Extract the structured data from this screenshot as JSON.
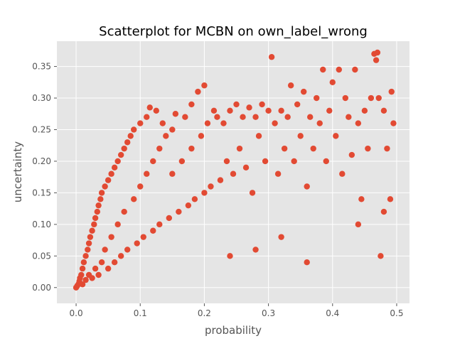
{
  "chart_data": {
    "type": "scatter",
    "title": "Scatterplot for MCBN on own_label_wrong",
    "xlabel": "probability",
    "ylabel": "uncertainty",
    "xlim": [
      -0.03,
      0.52
    ],
    "ylim": [
      -0.025,
      0.39
    ],
    "xticks": [
      0.0,
      0.1,
      0.2,
      0.3,
      0.4,
      0.5
    ],
    "xtick_labels": [
      "0.0",
      "0.1",
      "0.2",
      "0.3",
      "0.4",
      "0.5"
    ],
    "yticks": [
      0.0,
      0.05,
      0.1,
      0.15,
      0.2,
      0.25,
      0.3,
      0.35
    ],
    "ytick_labels": [
      "0.00",
      "0.05",
      "0.10",
      "0.15",
      "0.20",
      "0.25",
      "0.30",
      "0.35"
    ],
    "grid": true,
    "legend": "none",
    "colors": {
      "marker": "#E24A33",
      "plot_background": "#E5E5E5",
      "grid": "#FFFFFF"
    },
    "series": [
      {
        "points": [
          [
            0.0,
            0.0
          ],
          [
            0.002,
            0.003
          ],
          [
            0.004,
            0.006
          ],
          [
            0.005,
            0.01
          ],
          [
            0.006,
            0.015
          ],
          [
            0.008,
            0.02
          ],
          [
            0.01,
            0.03
          ],
          [
            0.01,
            0.005
          ],
          [
            0.012,
            0.04
          ],
          [
            0.015,
            0.05
          ],
          [
            0.015,
            0.012
          ],
          [
            0.018,
            0.06
          ],
          [
            0.02,
            0.07
          ],
          [
            0.02,
            0.02
          ],
          [
            0.022,
            0.08
          ],
          [
            0.025,
            0.09
          ],
          [
            0.025,
            0.015
          ],
          [
            0.028,
            0.1
          ],
          [
            0.03,
            0.11
          ],
          [
            0.03,
            0.03
          ],
          [
            0.033,
            0.12
          ],
          [
            0.035,
            0.13
          ],
          [
            0.035,
            0.02
          ],
          [
            0.038,
            0.14
          ],
          [
            0.04,
            0.15
          ],
          [
            0.04,
            0.04
          ],
          [
            0.045,
            0.16
          ],
          [
            0.045,
            0.06
          ],
          [
            0.05,
            0.17
          ],
          [
            0.05,
            0.03
          ],
          [
            0.055,
            0.18
          ],
          [
            0.055,
            0.08
          ],
          [
            0.06,
            0.19
          ],
          [
            0.06,
            0.04
          ],
          [
            0.065,
            0.2
          ],
          [
            0.065,
            0.1
          ],
          [
            0.07,
            0.21
          ],
          [
            0.07,
            0.05
          ],
          [
            0.075,
            0.22
          ],
          [
            0.075,
            0.12
          ],
          [
            0.08,
            0.23
          ],
          [
            0.08,
            0.06
          ],
          [
            0.085,
            0.24
          ],
          [
            0.09,
            0.25
          ],
          [
            0.09,
            0.14
          ],
          [
            0.095,
            0.07
          ],
          [
            0.1,
            0.26
          ],
          [
            0.1,
            0.16
          ],
          [
            0.105,
            0.08
          ],
          [
            0.11,
            0.27
          ],
          [
            0.11,
            0.18
          ],
          [
            0.115,
            0.285
          ],
          [
            0.12,
            0.09
          ],
          [
            0.12,
            0.2
          ],
          [
            0.125,
            0.28
          ],
          [
            0.13,
            0.22
          ],
          [
            0.13,
            0.1
          ],
          [
            0.135,
            0.26
          ],
          [
            0.14,
            0.24
          ],
          [
            0.145,
            0.11
          ],
          [
            0.15,
            0.25
          ],
          [
            0.15,
            0.18
          ],
          [
            0.155,
            0.275
          ],
          [
            0.16,
            0.12
          ],
          [
            0.165,
            0.2
          ],
          [
            0.17,
            0.27
          ],
          [
            0.175,
            0.13
          ],
          [
            0.18,
            0.29
          ],
          [
            0.18,
            0.22
          ],
          [
            0.185,
            0.14
          ],
          [
            0.19,
            0.31
          ],
          [
            0.195,
            0.24
          ],
          [
            0.2,
            0.15
          ],
          [
            0.2,
            0.32
          ],
          [
            0.205,
            0.26
          ],
          [
            0.21,
            0.16
          ],
          [
            0.215,
            0.28
          ],
          [
            0.22,
            0.27
          ],
          [
            0.225,
            0.17
          ],
          [
            0.23,
            0.26
          ],
          [
            0.235,
            0.2
          ],
          [
            0.24,
            0.28
          ],
          [
            0.245,
            0.18
          ],
          [
            0.25,
            0.29
          ],
          [
            0.255,
            0.22
          ],
          [
            0.26,
            0.27
          ],
          [
            0.265,
            0.19
          ],
          [
            0.27,
            0.285
          ],
          [
            0.275,
            0.15
          ],
          [
            0.28,
            0.27
          ],
          [
            0.285,
            0.24
          ],
          [
            0.29,
            0.29
          ],
          [
            0.295,
            0.2
          ],
          [
            0.3,
            0.28
          ],
          [
            0.305,
            0.365
          ],
          [
            0.31,
            0.26
          ],
          [
            0.315,
            0.18
          ],
          [
            0.32,
            0.28
          ],
          [
            0.325,
            0.22
          ],
          [
            0.33,
            0.27
          ],
          [
            0.335,
            0.32
          ],
          [
            0.34,
            0.2
          ],
          [
            0.345,
            0.29
          ],
          [
            0.35,
            0.24
          ],
          [
            0.355,
            0.31
          ],
          [
            0.36,
            0.16
          ],
          [
            0.365,
            0.27
          ],
          [
            0.37,
            0.22
          ],
          [
            0.375,
            0.3
          ],
          [
            0.38,
            0.26
          ],
          [
            0.385,
            0.345
          ],
          [
            0.39,
            0.2
          ],
          [
            0.395,
            0.28
          ],
          [
            0.4,
            0.325
          ],
          [
            0.405,
            0.24
          ],
          [
            0.41,
            0.345
          ],
          [
            0.415,
            0.18
          ],
          [
            0.42,
            0.3
          ],
          [
            0.425,
            0.27
          ],
          [
            0.43,
            0.21
          ],
          [
            0.435,
            0.345
          ],
          [
            0.44,
            0.26
          ],
          [
            0.445,
            0.14
          ],
          [
            0.45,
            0.28
          ],
          [
            0.455,
            0.22
          ],
          [
            0.46,
            0.3
          ],
          [
            0.465,
            0.37
          ],
          [
            0.468,
            0.36
          ],
          [
            0.47,
            0.372
          ],
          [
            0.472,
            0.3
          ],
          [
            0.475,
            0.05
          ],
          [
            0.48,
            0.28
          ],
          [
            0.485,
            0.22
          ],
          [
            0.49,
            0.14
          ],
          [
            0.492,
            0.31
          ],
          [
            0.495,
            0.26
          ],
          [
            0.36,
            0.04
          ],
          [
            0.32,
            0.08
          ],
          [
            0.28,
            0.06
          ],
          [
            0.24,
            0.05
          ],
          [
            0.44,
            0.1
          ],
          [
            0.48,
            0.12
          ]
        ]
      }
    ]
  }
}
